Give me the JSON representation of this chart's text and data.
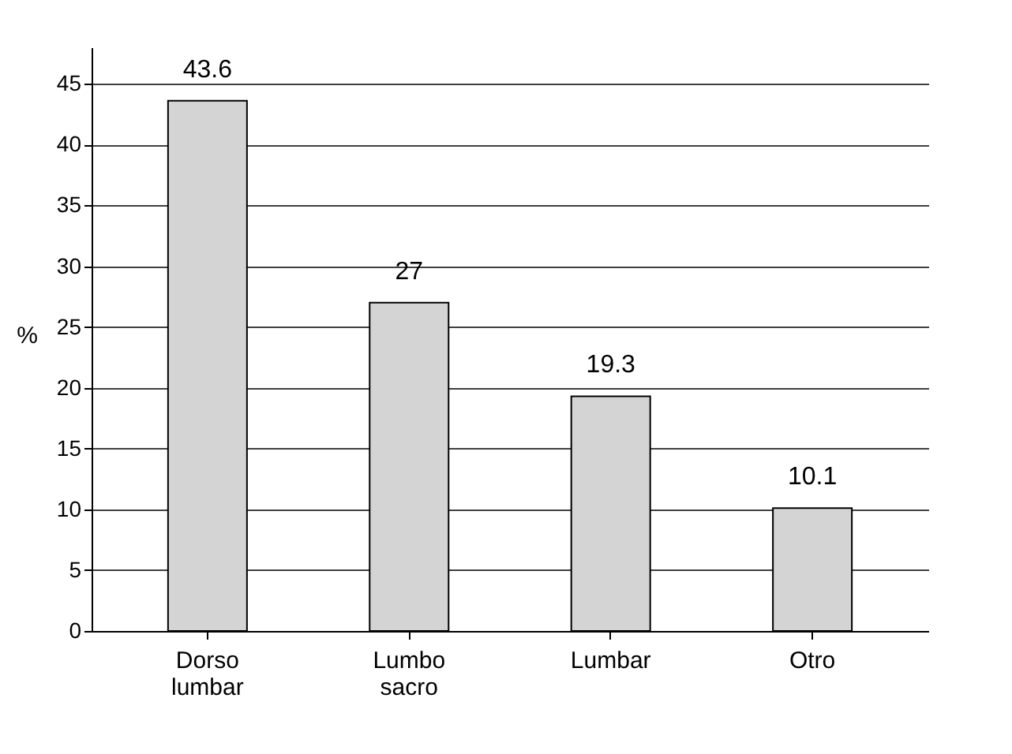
{
  "chart_data": {
    "type": "bar",
    "ylabel": "%",
    "categories": [
      "Dorso lumbar",
      "Lumbo sacro",
      "Lumbar",
      "Otro"
    ],
    "values": [
      43.6,
      27,
      19.3,
      10.1
    ],
    "color": "#d4d4d4",
    "ylim": [
      0,
      48
    ],
    "yticks": [
      0,
      5,
      10,
      15,
      20,
      25,
      30,
      35,
      40,
      45
    ],
    "grid": "y",
    "data_labels": true
  }
}
